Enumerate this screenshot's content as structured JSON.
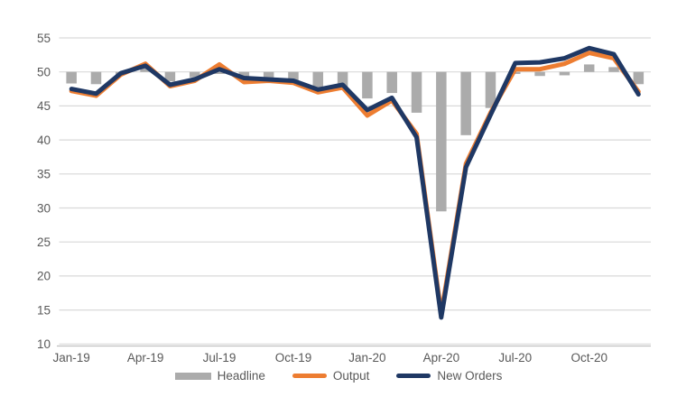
{
  "chart_data": {
    "type": "combo-bar-line",
    "title": "",
    "categories": [
      "Jan-19",
      "Feb-19",
      "Mar-19",
      "Apr-19",
      "May-19",
      "Jun-19",
      "Jul-19",
      "Aug-19",
      "Sep-19",
      "Oct-19",
      "Nov-19",
      "Dec-19",
      "Jan-20",
      "Feb-20",
      "Mar-20",
      "Apr-20",
      "May-20",
      "Jun-20",
      "Jul-20",
      "Aug-20",
      "Sep-20",
      "Oct-20",
      "Nov-20",
      "Dec-20"
    ],
    "x_tick_labels": [
      "Jan-19",
      "Apr-19",
      "Jul-19",
      "Oct-19",
      "Jan-20",
      "Apr-20",
      "Jul-20",
      "Oct-20"
    ],
    "x_tick_interval": 3,
    "y_ticks": [
      55,
      50,
      45,
      40,
      35,
      30,
      25,
      20,
      15,
      10
    ],
    "ylim": [
      10,
      55
    ],
    "bar_baseline": 50,
    "grid": true,
    "legend_position": "bottom",
    "colors": {
      "gridline": "#D9D9D9",
      "axis_line": "#BFBFBF",
      "axis_text": "#595959"
    },
    "series": [
      {
        "name": "Headline",
        "type": "bar",
        "color": "#ABABAB",
        "values": [
          48.3,
          48.2,
          49.6,
          50.7,
          48.6,
          49.2,
          49.7,
          49.3,
          48.8,
          48.3,
          47.3,
          47.5,
          46.1,
          46.9,
          44.0,
          29.5,
          40.7,
          44.7,
          49.7,
          49.4,
          49.5,
          51.1,
          50.7,
          48.2
        ]
      },
      {
        "name": "Output",
        "type": "line",
        "color": "#ED7D31",
        "values": [
          47.2,
          46.5,
          49.6,
          51.2,
          47.9,
          48.7,
          51.1,
          48.5,
          48.7,
          48.4,
          47.0,
          47.7,
          43.6,
          45.8,
          40.9,
          14.5,
          36.5,
          44.0,
          50.4,
          50.4,
          51.2,
          52.8,
          52.0,
          47.1
        ]
      },
      {
        "name": "New Orders",
        "type": "line",
        "color": "#1F3864",
        "values": [
          47.5,
          46.8,
          49.8,
          50.9,
          48.1,
          48.9,
          50.4,
          49.1,
          48.9,
          48.7,
          47.4,
          48.1,
          44.4,
          46.2,
          40.4,
          13.9,
          36.0,
          43.7,
          51.3,
          51.4,
          52.0,
          53.5,
          52.6,
          46.7
        ]
      }
    ]
  }
}
